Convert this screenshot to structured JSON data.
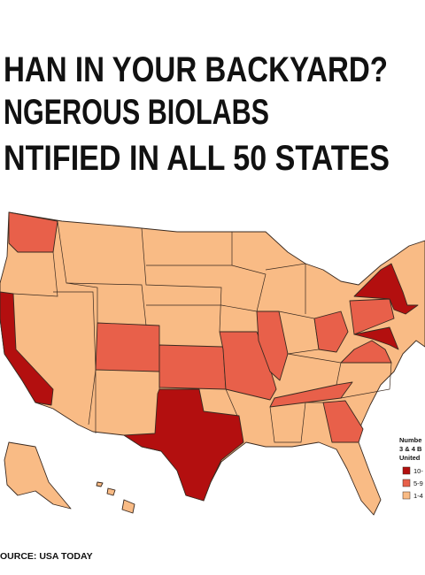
{
  "header": {
    "lines": [
      "HAN IN YOUR BACKYARD?",
      "NGEROUS BIOLABS",
      "NTIFIED IN ALL 50 STATES"
    ]
  },
  "legend": {
    "title_lines": [
      "Numbe",
      "3 & 4 B",
      "United"
    ],
    "items": [
      {
        "label": "10-",
        "color": "#b30f0f"
      },
      {
        "label": "5-9",
        "color": "#e8604a"
      },
      {
        "label": "1-4",
        "color": "#f9bb85"
      }
    ]
  },
  "source": "OURCE: USA TODAY"
}
